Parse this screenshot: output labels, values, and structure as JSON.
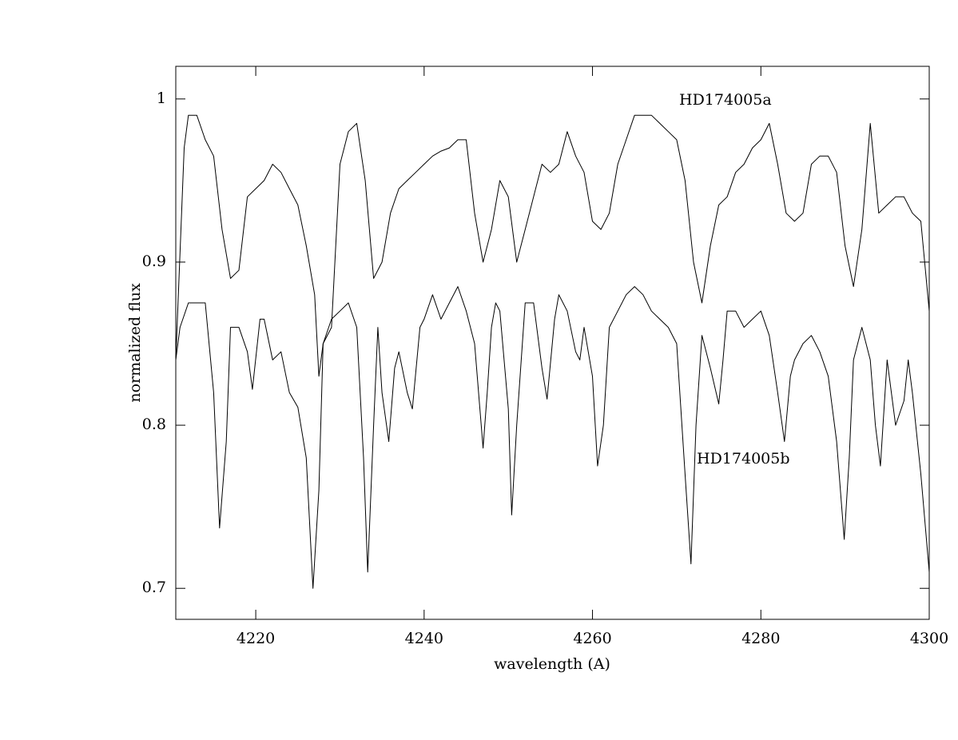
{
  "chart_data": {
    "type": "line",
    "xlabel": "wavelength (A)",
    "ylabel": "normalized flux",
    "xlim": [
      4210.5,
      4300
    ],
    "ylim": [
      0.681,
      1.02
    ],
    "xticks": [
      4220,
      4240,
      4260,
      4280,
      4300
    ],
    "yticks": [
      0.7,
      0.8,
      0.9,
      1
    ],
    "series": [
      {
        "name": "HD174005a",
        "color": "#000000",
        "x": [
          4210.5,
          4211.5,
          4212,
          4213,
          4214,
          4215,
          4216,
          4217,
          4218,
          4219,
          4220,
          4221,
          4222,
          4223,
          4224,
          4225,
          4226,
          4227,
          4227.5,
          4228,
          4229,
          4230,
          4231,
          4232,
          4233,
          4234,
          4235,
          4236,
          4237,
          4238,
          4239,
          4240,
          4241,
          4242,
          4243,
          4244,
          4245,
          4246,
          4247,
          4248,
          4249,
          4250,
          4251,
          4252,
          4253,
          4254,
          4255,
          4256,
          4257,
          4258,
          4259,
          4260,
          4261,
          4262,
          4263,
          4264,
          4265,
          4266,
          4267,
          4268,
          4269,
          4270,
          4271,
          4272,
          4273,
          4274,
          4275,
          4276,
          4277,
          4278,
          4279,
          4280,
          4281,
          4282,
          4283,
          4284,
          4285,
          4286,
          4287,
          4288,
          4289,
          4290,
          4291,
          4292,
          4293,
          4294,
          4295,
          4296,
          4297,
          4298,
          4299,
          4300
        ],
        "values": [
          0.84,
          0.97,
          0.99,
          0.99,
          0.975,
          0.965,
          0.92,
          0.89,
          0.895,
          0.94,
          0.945,
          0.95,
          0.96,
          0.955,
          0.945,
          0.935,
          0.91,
          0.88,
          0.83,
          0.85,
          0.86,
          0.96,
          0.98,
          0.985,
          0.95,
          0.89,
          0.9,
          0.93,
          0.945,
          0.95,
          0.955,
          0.96,
          0.965,
          0.968,
          0.97,
          0.975,
          0.975,
          0.93,
          0.9,
          0.92,
          0.95,
          0.94,
          0.9,
          0.92,
          0.94,
          0.96,
          0.955,
          0.96,
          0.98,
          0.965,
          0.955,
          0.925,
          0.92,
          0.93,
          0.96,
          0.975,
          0.99,
          0.99,
          0.99,
          0.985,
          0.98,
          0.975,
          0.95,
          0.9,
          0.875,
          0.91,
          0.935,
          0.94,
          0.955,
          0.96,
          0.97,
          0.975,
          0.985,
          0.96,
          0.93,
          0.925,
          0.93,
          0.96,
          0.965,
          0.965,
          0.955,
          0.91,
          0.885,
          0.92,
          0.985,
          0.93,
          0.935,
          0.94,
          0.94,
          0.93,
          0.925,
          0.87
        ]
      },
      {
        "name": "HD174005b",
        "color": "#000000",
        "x": [
          4210.5,
          4211,
          4212,
          4213,
          4214,
          4215,
          4215.7,
          4216.5,
          4217,
          4218,
          4219,
          4219.6,
          4220.5,
          4221,
          4222,
          4223,
          4224,
          4225,
          4226,
          4226.8,
          4227.5,
          4228,
          4229,
          4230,
          4231,
          4232,
          4232.8,
          4233.3,
          4234,
          4234.5,
          4235,
          4235.8,
          4236.5,
          4237,
          4238,
          4238.6,
          4239.5,
          4240,
          4241,
          4242,
          4243,
          4244,
          4245,
          4246,
          4247,
          4247.5,
          4248,
          4248.5,
          4249,
          4250,
          4250.4,
          4251,
          4252,
          4253,
          4254,
          4254.6,
          4255.5,
          4256,
          4257,
          4258,
          4258.5,
          4259,
          4260,
          4260.6,
          4261.3,
          4262,
          4263,
          4264,
          4265,
          4266,
          4267,
          4268,
          4269,
          4270,
          4271,
          4271.7,
          4272.3,
          4273,
          4274,
          4275,
          4275.5,
          4276,
          4277,
          4278,
          4279,
          4280,
          4281,
          4282,
          4282.8,
          4283.5,
          4284,
          4285,
          4286,
          4287,
          4288,
          4289,
          4289.9,
          4290.5,
          4291,
          4292,
          4293,
          4293.6,
          4294.2,
          4295,
          4296,
          4297,
          4297.5,
          4298,
          4299,
          4300
        ],
        "values": [
          0.84,
          0.86,
          0.875,
          0.875,
          0.875,
          0.82,
          0.737,
          0.79,
          0.86,
          0.86,
          0.845,
          0.822,
          0.865,
          0.865,
          0.84,
          0.845,
          0.82,
          0.811,
          0.78,
          0.7,
          0.76,
          0.85,
          0.865,
          0.87,
          0.875,
          0.86,
          0.78,
          0.71,
          0.8,
          0.86,
          0.82,
          0.79,
          0.835,
          0.845,
          0.82,
          0.81,
          0.86,
          0.865,
          0.88,
          0.865,
          0.875,
          0.885,
          0.87,
          0.85,
          0.786,
          0.82,
          0.86,
          0.875,
          0.87,
          0.81,
          0.745,
          0.8,
          0.875,
          0.875,
          0.835,
          0.816,
          0.865,
          0.88,
          0.87,
          0.845,
          0.84,
          0.86,
          0.83,
          0.775,
          0.8,
          0.86,
          0.87,
          0.88,
          0.885,
          0.88,
          0.87,
          0.865,
          0.86,
          0.85,
          0.77,
          0.715,
          0.8,
          0.855,
          0.835,
          0.813,
          0.84,
          0.87,
          0.87,
          0.86,
          0.865,
          0.87,
          0.855,
          0.82,
          0.79,
          0.83,
          0.84,
          0.85,
          0.855,
          0.845,
          0.83,
          0.79,
          0.73,
          0.78,
          0.84,
          0.86,
          0.84,
          0.8,
          0.775,
          0.84,
          0.8,
          0.815,
          0.84,
          0.82,
          0.77,
          0.71
        ]
      }
    ]
  }
}
